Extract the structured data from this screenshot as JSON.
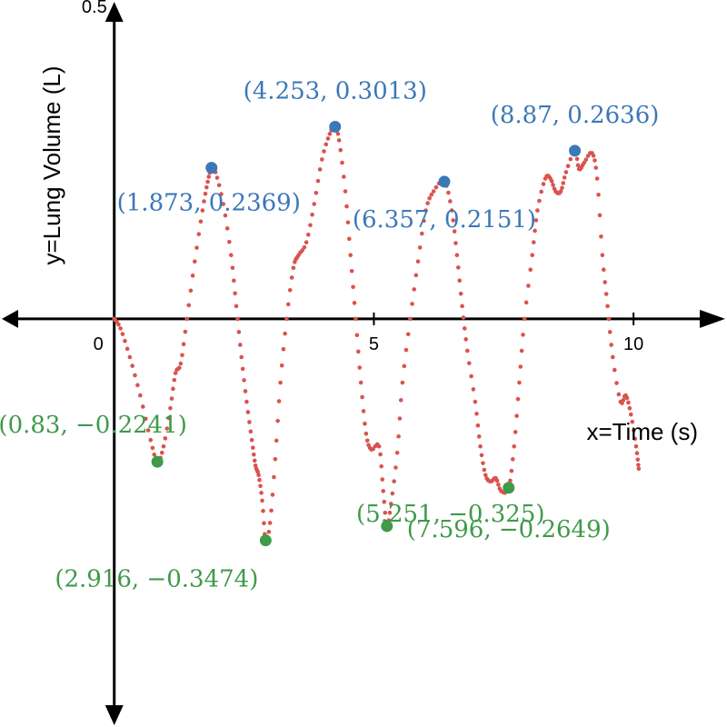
{
  "chart_data": {
    "type": "scatter",
    "title": "",
    "xlabel": "x=Time (s)",
    "ylabel": "y=Lung Volume (L)",
    "xlim": [
      -2.2,
      11.8
    ],
    "ylim": [
      -0.64,
      0.5
    ],
    "x_ticks": [
      {
        "value": 0,
        "label": "0"
      },
      {
        "value": 5,
        "label": "5"
      },
      {
        "value": 10,
        "label": "10"
      }
    ],
    "y_ticks": [
      {
        "value": 0.5,
        "label": "0.5"
      }
    ],
    "grid": false,
    "colors": {
      "curve": "#d9534f",
      "maxima": "#3b78b8",
      "minima": "#3f9a4a",
      "axis": "#000000"
    },
    "curve_keypoints": [
      [
        0.0,
        0.0
      ],
      [
        0.12,
        -0.015
      ],
      [
        0.3,
        -0.06
      ],
      [
        0.5,
        -0.12
      ],
      [
        0.7,
        -0.19
      ],
      [
        0.83,
        -0.2241
      ],
      [
        0.95,
        -0.2
      ],
      [
        1.08,
        -0.14
      ],
      [
        1.18,
        -0.085
      ],
      [
        1.28,
        -0.07
      ],
      [
        1.4,
        0.0
      ],
      [
        1.55,
        0.09
      ],
      [
        1.7,
        0.17
      ],
      [
        1.8,
        0.215
      ],
      [
        1.873,
        0.2369
      ],
      [
        1.95,
        0.23
      ],
      [
        2.1,
        0.18
      ],
      [
        2.25,
        0.1
      ],
      [
        2.35,
        0.02
      ],
      [
        2.45,
        -0.06
      ],
      [
        2.55,
        -0.13
      ],
      [
        2.65,
        -0.19
      ],
      [
        2.72,
        -0.23
      ],
      [
        2.78,
        -0.245
      ],
      [
        2.85,
        -0.285
      ],
      [
        2.916,
        -0.3474
      ],
      [
        3.0,
        -0.32
      ],
      [
        3.1,
        -0.22
      ],
      [
        3.2,
        -0.1
      ],
      [
        3.32,
        0.0
      ],
      [
        3.45,
        0.08
      ],
      [
        3.55,
        0.1
      ],
      [
        3.7,
        0.12
      ],
      [
        3.85,
        0.18
      ],
      [
        4.0,
        0.25
      ],
      [
        4.15,
        0.29
      ],
      [
        4.253,
        0.3013
      ],
      [
        4.33,
        0.28
      ],
      [
        4.45,
        0.2
      ],
      [
        4.55,
        0.1
      ],
      [
        4.65,
        0.0
      ],
      [
        4.75,
        -0.1
      ],
      [
        4.85,
        -0.18
      ],
      [
        4.95,
        -0.205
      ],
      [
        5.1,
        -0.2
      ],
      [
        5.18,
        -0.27
      ],
      [
        5.251,
        -0.325
      ],
      [
        5.33,
        -0.29
      ],
      [
        5.45,
        -0.21
      ],
      [
        5.55,
        -0.1
      ],
      [
        5.7,
        0.0
      ],
      [
        5.85,
        0.09
      ],
      [
        6.0,
        0.17
      ],
      [
        6.15,
        0.2
      ],
      [
        6.357,
        0.2151
      ],
      [
        6.5,
        0.17
      ],
      [
        6.6,
        0.1
      ],
      [
        6.7,
        0.02
      ],
      [
        6.8,
        -0.05
      ],
      [
        6.95,
        -0.13
      ],
      [
        7.05,
        -0.2
      ],
      [
        7.15,
        -0.245
      ],
      [
        7.25,
        -0.255
      ],
      [
        7.35,
        -0.25
      ],
      [
        7.45,
        -0.27
      ],
      [
        7.596,
        -0.2649
      ],
      [
        7.7,
        -0.2
      ],
      [
        7.8,
        -0.1
      ],
      [
        7.9,
        0.0
      ],
      [
        8.05,
        0.1
      ],
      [
        8.15,
        0.17
      ],
      [
        8.3,
        0.22
      ],
      [
        8.4,
        0.22
      ],
      [
        8.5,
        0.2
      ],
      [
        8.6,
        0.2
      ],
      [
        8.7,
        0.23
      ],
      [
        8.87,
        0.2636
      ],
      [
        8.95,
        0.235
      ],
      [
        9.05,
        0.245
      ],
      [
        9.2,
        0.26
      ],
      [
        9.3,
        0.22
      ],
      [
        9.4,
        0.1
      ],
      [
        9.5,
        0.02
      ],
      [
        9.6,
        -0.06
      ],
      [
        9.75,
        -0.13
      ],
      [
        9.85,
        -0.12
      ],
      [
        9.95,
        -0.15
      ],
      [
        10.05,
        -0.2
      ],
      [
        10.1,
        -0.235
      ]
    ],
    "maxima": [
      {
        "x": 1.873,
        "y": 0.2369,
        "label": "(1.873, 0.2369)"
      },
      {
        "x": 4.253,
        "y": 0.3013,
        "label": "(4.253, 0.3013)"
      },
      {
        "x": 6.357,
        "y": 0.2151,
        "label": "(6.357, 0.2151)"
      },
      {
        "x": 8.87,
        "y": 0.2636,
        "label": "(8.87, 0.2636)"
      }
    ],
    "minima": [
      {
        "x": 0.83,
        "y": -0.2241,
        "label": "(0.83, −0.2241)"
      },
      {
        "x": 2.916,
        "y": -0.3474,
        "label": "(2.916, −0.3474)"
      },
      {
        "x": 5.251,
        "y": -0.325,
        "label": "(5.251, −0.325)"
      },
      {
        "x": 7.596,
        "y": -0.2649,
        "label": "(7.596, −0.2649)"
      }
    ]
  }
}
